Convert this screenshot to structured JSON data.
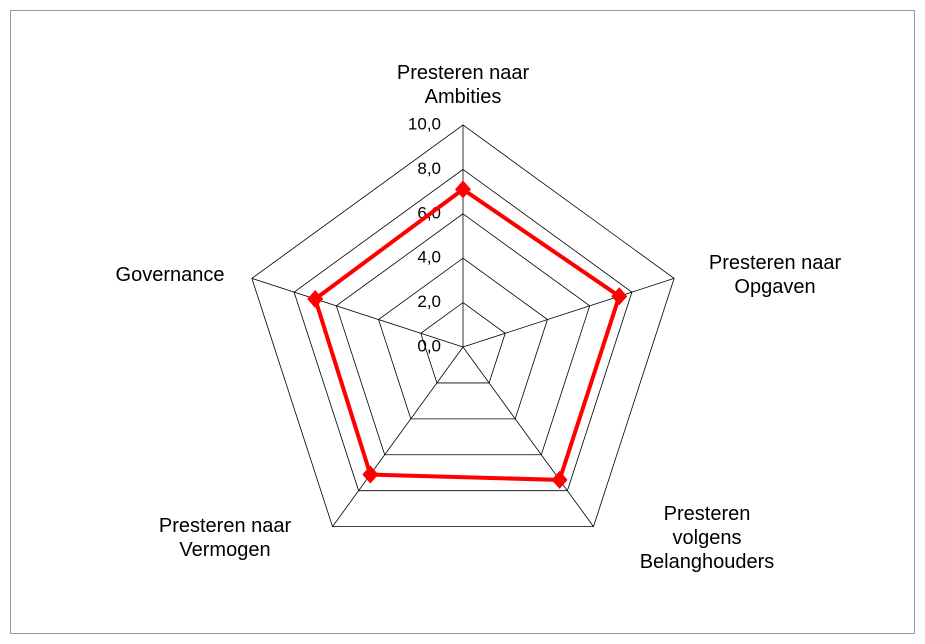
{
  "chart_data": {
    "type": "radar",
    "categories": [
      "Presteren naar\nAmbities",
      "Presteren naar\nOpgaven",
      "Presteren\nvolgens\nBelanghouders",
      "Presteren naar\nVermogen",
      "Governance"
    ],
    "series": [
      {
        "color": "#ff0000",
        "values": [
          7.1,
          7.4,
          7.4,
          7.1,
          7.0
        ]
      }
    ],
    "ylim": [
      0,
      10
    ],
    "yticks": [
      {
        "value": 0,
        "label": "0,0"
      },
      {
        "value": 2,
        "label": "2,0"
      },
      {
        "value": 4,
        "label": "4,0"
      },
      {
        "value": 6,
        "label": "6,0"
      },
      {
        "value": 8,
        "label": "8,0"
      },
      {
        "value": 10,
        "label": "10,0"
      }
    ],
    "grid": true
  }
}
